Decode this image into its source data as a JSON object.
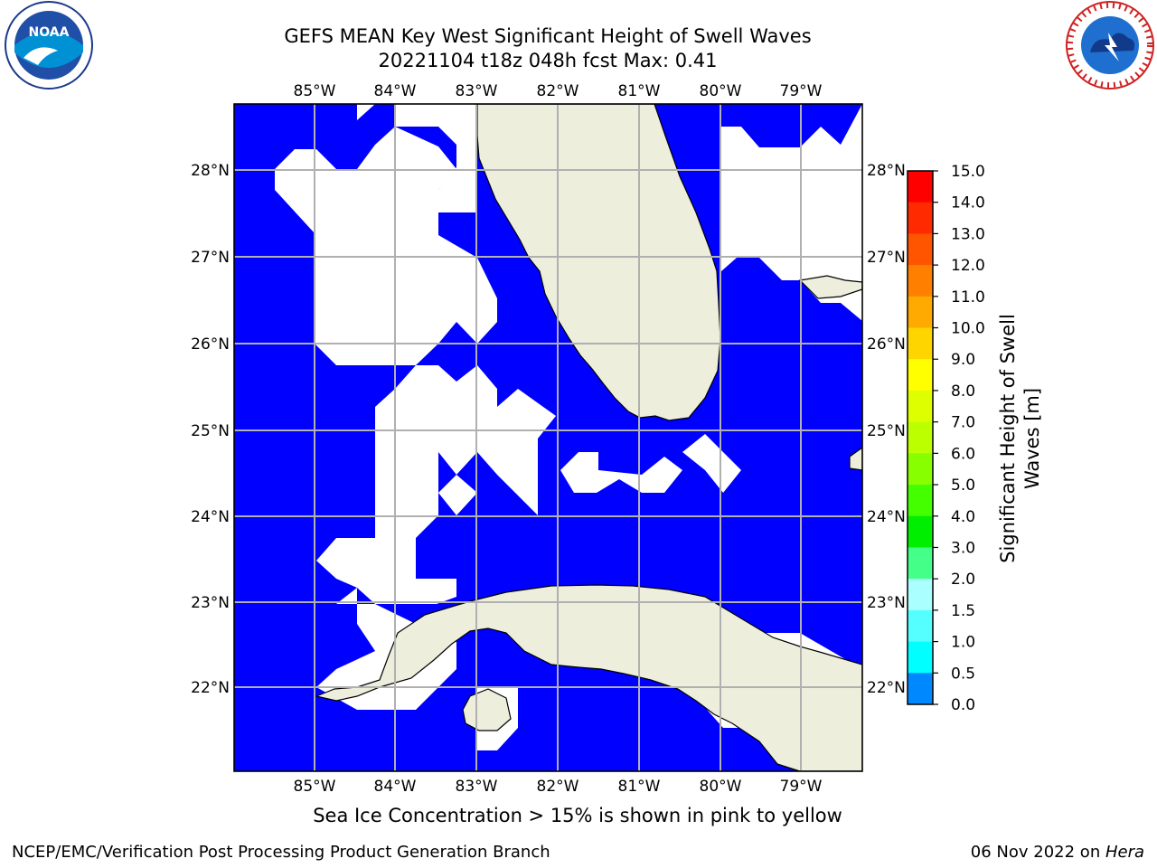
{
  "title_line1": "GEFS MEAN Key West Significant Height of Swell Waves",
  "title_line2": "20221104 t18z 048h fcst   Max: 0.41",
  "lon_labels": [
    "85°W",
    "84°W",
    "83°W",
    "82°W",
    "81°W",
    "80°W",
    "79°W"
  ],
  "lat_labels": [
    "28°N",
    "27°N",
    "26°N",
    "25°N",
    "24°N",
    "23°N",
    "22°N"
  ],
  "colorbar": {
    "label": "Significant Height of Swell Waves [m]",
    "label_line1": "Significant Height of Swell",
    "label_line2": "Waves [m]",
    "ticks": [
      "15.0",
      "14.0",
      "13.0",
      "12.0",
      "11.0",
      "10.0",
      "9.0",
      "8.0",
      "7.0",
      "6.0",
      "5.0",
      "4.0",
      "3.0",
      "2.0",
      "1.5",
      "1.0",
      "0.5",
      "0.0"
    ],
    "colors": [
      "#ff0000",
      "#ff2a00",
      "#ff5500",
      "#ff8000",
      "#ffaa00",
      "#ffd500",
      "#ffff00",
      "#ddff00",
      "#bbff00",
      "#88ff00",
      "#44ff00",
      "#00ee00",
      "#44ff88",
      "#aaffff",
      "#55ffff",
      "#00ffff",
      "#0088ff",
      "#0000ff"
    ]
  },
  "map_colors": {
    "swell": "#0000ff",
    "land": "#eeeedd",
    "ocean_no_data": "#ffffff",
    "grid": "#b0b0b0"
  },
  "note": "Sea Ice Concentration > 15% is shown in pink to yellow",
  "footer_left": "NCEP/EMC/Verification Post Processing Product Generation Branch",
  "footer_date": "06 Nov 2022 on ",
  "footer_machine": "Hera",
  "logos": {
    "left": "NOAA",
    "right": "NATIONAL WEATHER SERVICE"
  }
}
